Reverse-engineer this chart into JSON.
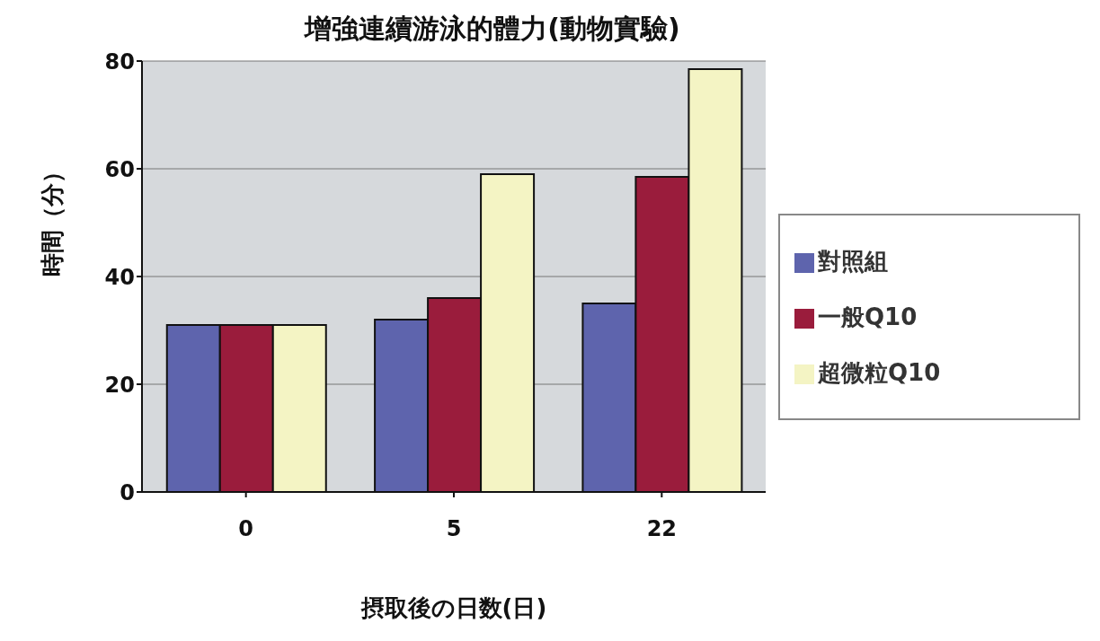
{
  "chart_data": {
    "type": "bar",
    "title": "增強連續游泳的體力(動物實驗)",
    "xlabel": "摂取後の日数(日)",
    "ylabel": "時間（分）",
    "categories": [
      "0",
      "5",
      "22"
    ],
    "series": [
      {
        "name": "對照組",
        "color": "#5e64ad",
        "values": [
          31,
          32,
          35
        ]
      },
      {
        "name": "一般Q10",
        "color": "#9a1c3c",
        "values": [
          31,
          36,
          58.5
        ]
      },
      {
        "name": "超微粒Q10",
        "color": "#f4f4c4",
        "values": [
          31,
          59,
          78.5
        ]
      }
    ],
    "ylim": [
      0,
      80
    ],
    "yticks": [
      0,
      20,
      40,
      60,
      80
    ],
    "grid": "y",
    "legend": "right"
  }
}
